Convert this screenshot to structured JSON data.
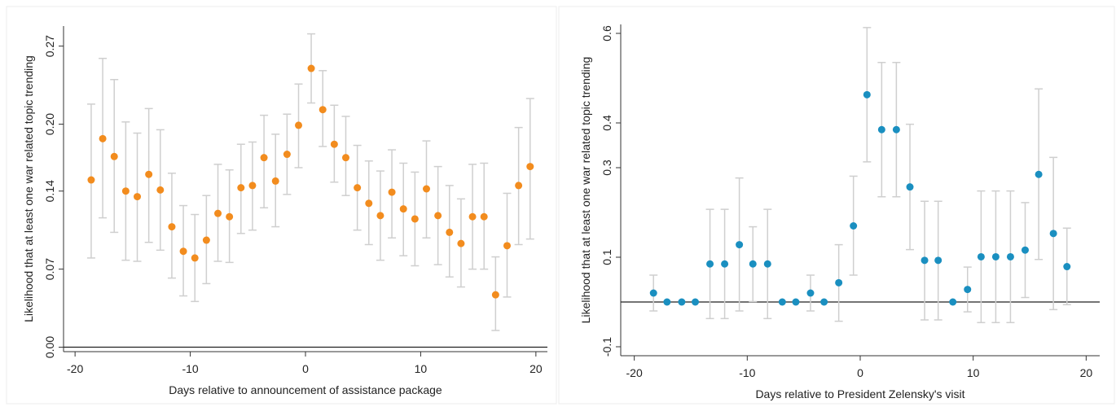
{
  "chart_data": [
    {
      "type": "scatter",
      "style": "point estimates with vertical confidence interval bars",
      "xlabel": "Days relative to announcement of assistance package",
      "ylabel": "Likelihood that at least one war related topic trending",
      "xlim": [
        -21,
        21
      ],
      "ylim": [
        -0.004,
        0.288
      ],
      "xticks": [
        -20,
        -10,
        0,
        10,
        20
      ],
      "xtick_labels": [
        "-20",
        "-10",
        "0",
        "10",
        "20"
      ],
      "yticks": [
        0,
        0.07,
        0.14,
        0.2,
        0.27
      ],
      "ytick_labels": [
        "0.00",
        "0.07",
        "0.14",
        "0.20",
        "0.27"
      ],
      "reference_line": 0,
      "grid": false,
      "colors": {
        "point": "#f28c1e",
        "ci": "#cfcfcf",
        "axis": "#333333"
      },
      "points": [
        {
          "x": -18.6,
          "y": 0.15,
          "lo": 0.08,
          "hi": 0.218
        },
        {
          "x": -17.6,
          "y": 0.187,
          "lo": 0.116,
          "hi": 0.259
        },
        {
          "x": -16.6,
          "y": 0.171,
          "lo": 0.103,
          "hi": 0.24
        },
        {
          "x": -15.6,
          "y": 0.14,
          "lo": 0.078,
          "hi": 0.202
        },
        {
          "x": -14.6,
          "y": 0.135,
          "lo": 0.077,
          "hi": 0.192
        },
        {
          "x": -13.6,
          "y": 0.155,
          "lo": 0.094,
          "hi": 0.214
        },
        {
          "x": -12.6,
          "y": 0.141,
          "lo": 0.087,
          "hi": 0.195
        },
        {
          "x": -11.6,
          "y": 0.108,
          "lo": 0.062,
          "hi": 0.156
        },
        {
          "x": -10.6,
          "y": 0.086,
          "lo": 0.046,
          "hi": 0.127
        },
        {
          "x": -9.6,
          "y": 0.08,
          "lo": 0.041,
          "hi": 0.119
        },
        {
          "x": -8.6,
          "y": 0.096,
          "lo": 0.057,
          "hi": 0.136
        },
        {
          "x": -7.6,
          "y": 0.12,
          "lo": 0.077,
          "hi": 0.164
        },
        {
          "x": -6.6,
          "y": 0.117,
          "lo": 0.076,
          "hi": 0.159
        },
        {
          "x": -5.6,
          "y": 0.143,
          "lo": 0.102,
          "hi": 0.182
        },
        {
          "x": -4.6,
          "y": 0.145,
          "lo": 0.105,
          "hi": 0.184
        },
        {
          "x": -3.6,
          "y": 0.17,
          "lo": 0.125,
          "hi": 0.208
        },
        {
          "x": -2.6,
          "y": 0.149,
          "lo": 0.108,
          "hi": 0.191
        },
        {
          "x": -1.6,
          "y": 0.173,
          "lo": 0.137,
          "hi": 0.209
        },
        {
          "x": -0.6,
          "y": 0.199,
          "lo": 0.161,
          "hi": 0.236
        },
        {
          "x": 0.5,
          "y": 0.25,
          "lo": 0.219,
          "hi": 0.281
        },
        {
          "x": 1.5,
          "y": 0.213,
          "lo": 0.18,
          "hi": 0.248
        },
        {
          "x": 2.5,
          "y": 0.182,
          "lo": 0.148,
          "hi": 0.217
        },
        {
          "x": 3.5,
          "y": 0.17,
          "lo": 0.136,
          "hi": 0.207
        },
        {
          "x": 4.5,
          "y": 0.143,
          "lo": 0.105,
          "hi": 0.181
        },
        {
          "x": 5.5,
          "y": 0.129,
          "lo": 0.092,
          "hi": 0.167
        },
        {
          "x": 6.5,
          "y": 0.118,
          "lo": 0.078,
          "hi": 0.158
        },
        {
          "x": 7.5,
          "y": 0.139,
          "lo": 0.098,
          "hi": 0.177
        },
        {
          "x": 8.5,
          "y": 0.124,
          "lo": 0.082,
          "hi": 0.165
        },
        {
          "x": 9.5,
          "y": 0.115,
          "lo": 0.073,
          "hi": 0.157
        },
        {
          "x": 10.5,
          "y": 0.142,
          "lo": 0.098,
          "hi": 0.185
        },
        {
          "x": 11.5,
          "y": 0.118,
          "lo": 0.074,
          "hi": 0.162
        },
        {
          "x": 12.5,
          "y": 0.103,
          "lo": 0.063,
          "hi": 0.145
        },
        {
          "x": 13.5,
          "y": 0.093,
          "lo": 0.054,
          "hi": 0.133
        },
        {
          "x": 14.5,
          "y": 0.117,
          "lo": 0.07,
          "hi": 0.164
        },
        {
          "x": 15.5,
          "y": 0.117,
          "lo": 0.07,
          "hi": 0.165
        },
        {
          "x": 16.5,
          "y": 0.047,
          "lo": 0.015,
          "hi": 0.081
        },
        {
          "x": 17.5,
          "y": 0.091,
          "lo": 0.045,
          "hi": 0.138
        },
        {
          "x": 18.5,
          "y": 0.145,
          "lo": 0.092,
          "hi": 0.197
        },
        {
          "x": 19.5,
          "y": 0.162,
          "lo": 0.097,
          "hi": 0.223
        }
      ]
    },
    {
      "type": "scatter",
      "style": "point estimates with vertical confidence interval bars",
      "xlabel": "Days relative to President Zelensky's visit",
      "ylabel": "Likelihood that at least one war related topic trending",
      "xlim": [
        -21.2,
        21.2
      ],
      "ylim": [
        -0.12,
        0.62
      ],
      "xticks": [
        -20,
        -10,
        0,
        10,
        20
      ],
      "xtick_labels": [
        "-20",
        "-10",
        "0",
        "10",
        "20"
      ],
      "yticks": [
        -0.1,
        0.1,
        0.3,
        0.4,
        0.6
      ],
      "ytick_labels": [
        "-0.1",
        "0.1",
        "0.3",
        "0.4",
        "0.6"
      ],
      "reference_line": 0,
      "grid": false,
      "colors": {
        "point": "#1a8fc0",
        "ci": "#cfcfcf",
        "axis": "#333333"
      },
      "points": [
        {
          "x": -18.3,
          "y": 0.02,
          "lo": -0.02,
          "hi": 0.06
        },
        {
          "x": -17.1,
          "y": 0.0,
          "lo": 0.0,
          "hi": 0.0
        },
        {
          "x": -15.8,
          "y": 0.0,
          "lo": 0.0,
          "hi": 0.0
        },
        {
          "x": -14.6,
          "y": 0.0,
          "lo": 0.0,
          "hi": 0.0
        },
        {
          "x": -13.3,
          "y": 0.085,
          "lo": -0.037,
          "hi": 0.207
        },
        {
          "x": -12.0,
          "y": 0.085,
          "lo": -0.037,
          "hi": 0.207
        },
        {
          "x": -10.7,
          "y": 0.128,
          "lo": -0.02,
          "hi": 0.277
        },
        {
          "x": -9.5,
          "y": 0.085,
          "lo": 0.001,
          "hi": 0.168
        },
        {
          "x": -8.2,
          "y": 0.085,
          "lo": -0.037,
          "hi": 0.207
        },
        {
          "x": -6.9,
          "y": 0.0,
          "lo": 0.0,
          "hi": 0.0
        },
        {
          "x": -5.7,
          "y": 0.0,
          "lo": 0.0,
          "hi": 0.0
        },
        {
          "x": -4.4,
          "y": 0.02,
          "lo": -0.02,
          "hi": 0.06
        },
        {
          "x": -3.2,
          "y": 0.0,
          "lo": 0.0,
          "hi": 0.0
        },
        {
          "x": -1.9,
          "y": 0.043,
          "lo": -0.043,
          "hi": 0.128
        },
        {
          "x": -0.6,
          "y": 0.17,
          "lo": 0.06,
          "hi": 0.281
        },
        {
          "x": 0.6,
          "y": 0.463,
          "lo": 0.313,
          "hi": 0.613
        },
        {
          "x": 1.9,
          "y": 0.385,
          "lo": 0.235,
          "hi": 0.535
        },
        {
          "x": 3.2,
          "y": 0.385,
          "lo": 0.235,
          "hi": 0.535
        },
        {
          "x": 4.4,
          "y": 0.257,
          "lo": 0.117,
          "hi": 0.397
        },
        {
          "x": 5.7,
          "y": 0.093,
          "lo": -0.04,
          "hi": 0.225
        },
        {
          "x": 6.9,
          "y": 0.093,
          "lo": -0.04,
          "hi": 0.225
        },
        {
          "x": 8.2,
          "y": 0.0,
          "lo": 0.0,
          "hi": 0.0
        },
        {
          "x": 9.5,
          "y": 0.028,
          "lo": -0.022,
          "hi": 0.078
        },
        {
          "x": 10.7,
          "y": 0.101,
          "lo": -0.046,
          "hi": 0.248
        },
        {
          "x": 12.0,
          "y": 0.101,
          "lo": -0.046,
          "hi": 0.248
        },
        {
          "x": 13.3,
          "y": 0.101,
          "lo": -0.046,
          "hi": 0.248
        },
        {
          "x": 14.6,
          "y": 0.116,
          "lo": 0.01,
          "hi": 0.222
        },
        {
          "x": 15.8,
          "y": 0.285,
          "lo": 0.095,
          "hi": 0.476
        },
        {
          "x": 17.1,
          "y": 0.153,
          "lo": -0.017,
          "hi": 0.323
        },
        {
          "x": 18.3,
          "y": 0.079,
          "lo": -0.006,
          "hi": 0.165
        }
      ]
    }
  ]
}
